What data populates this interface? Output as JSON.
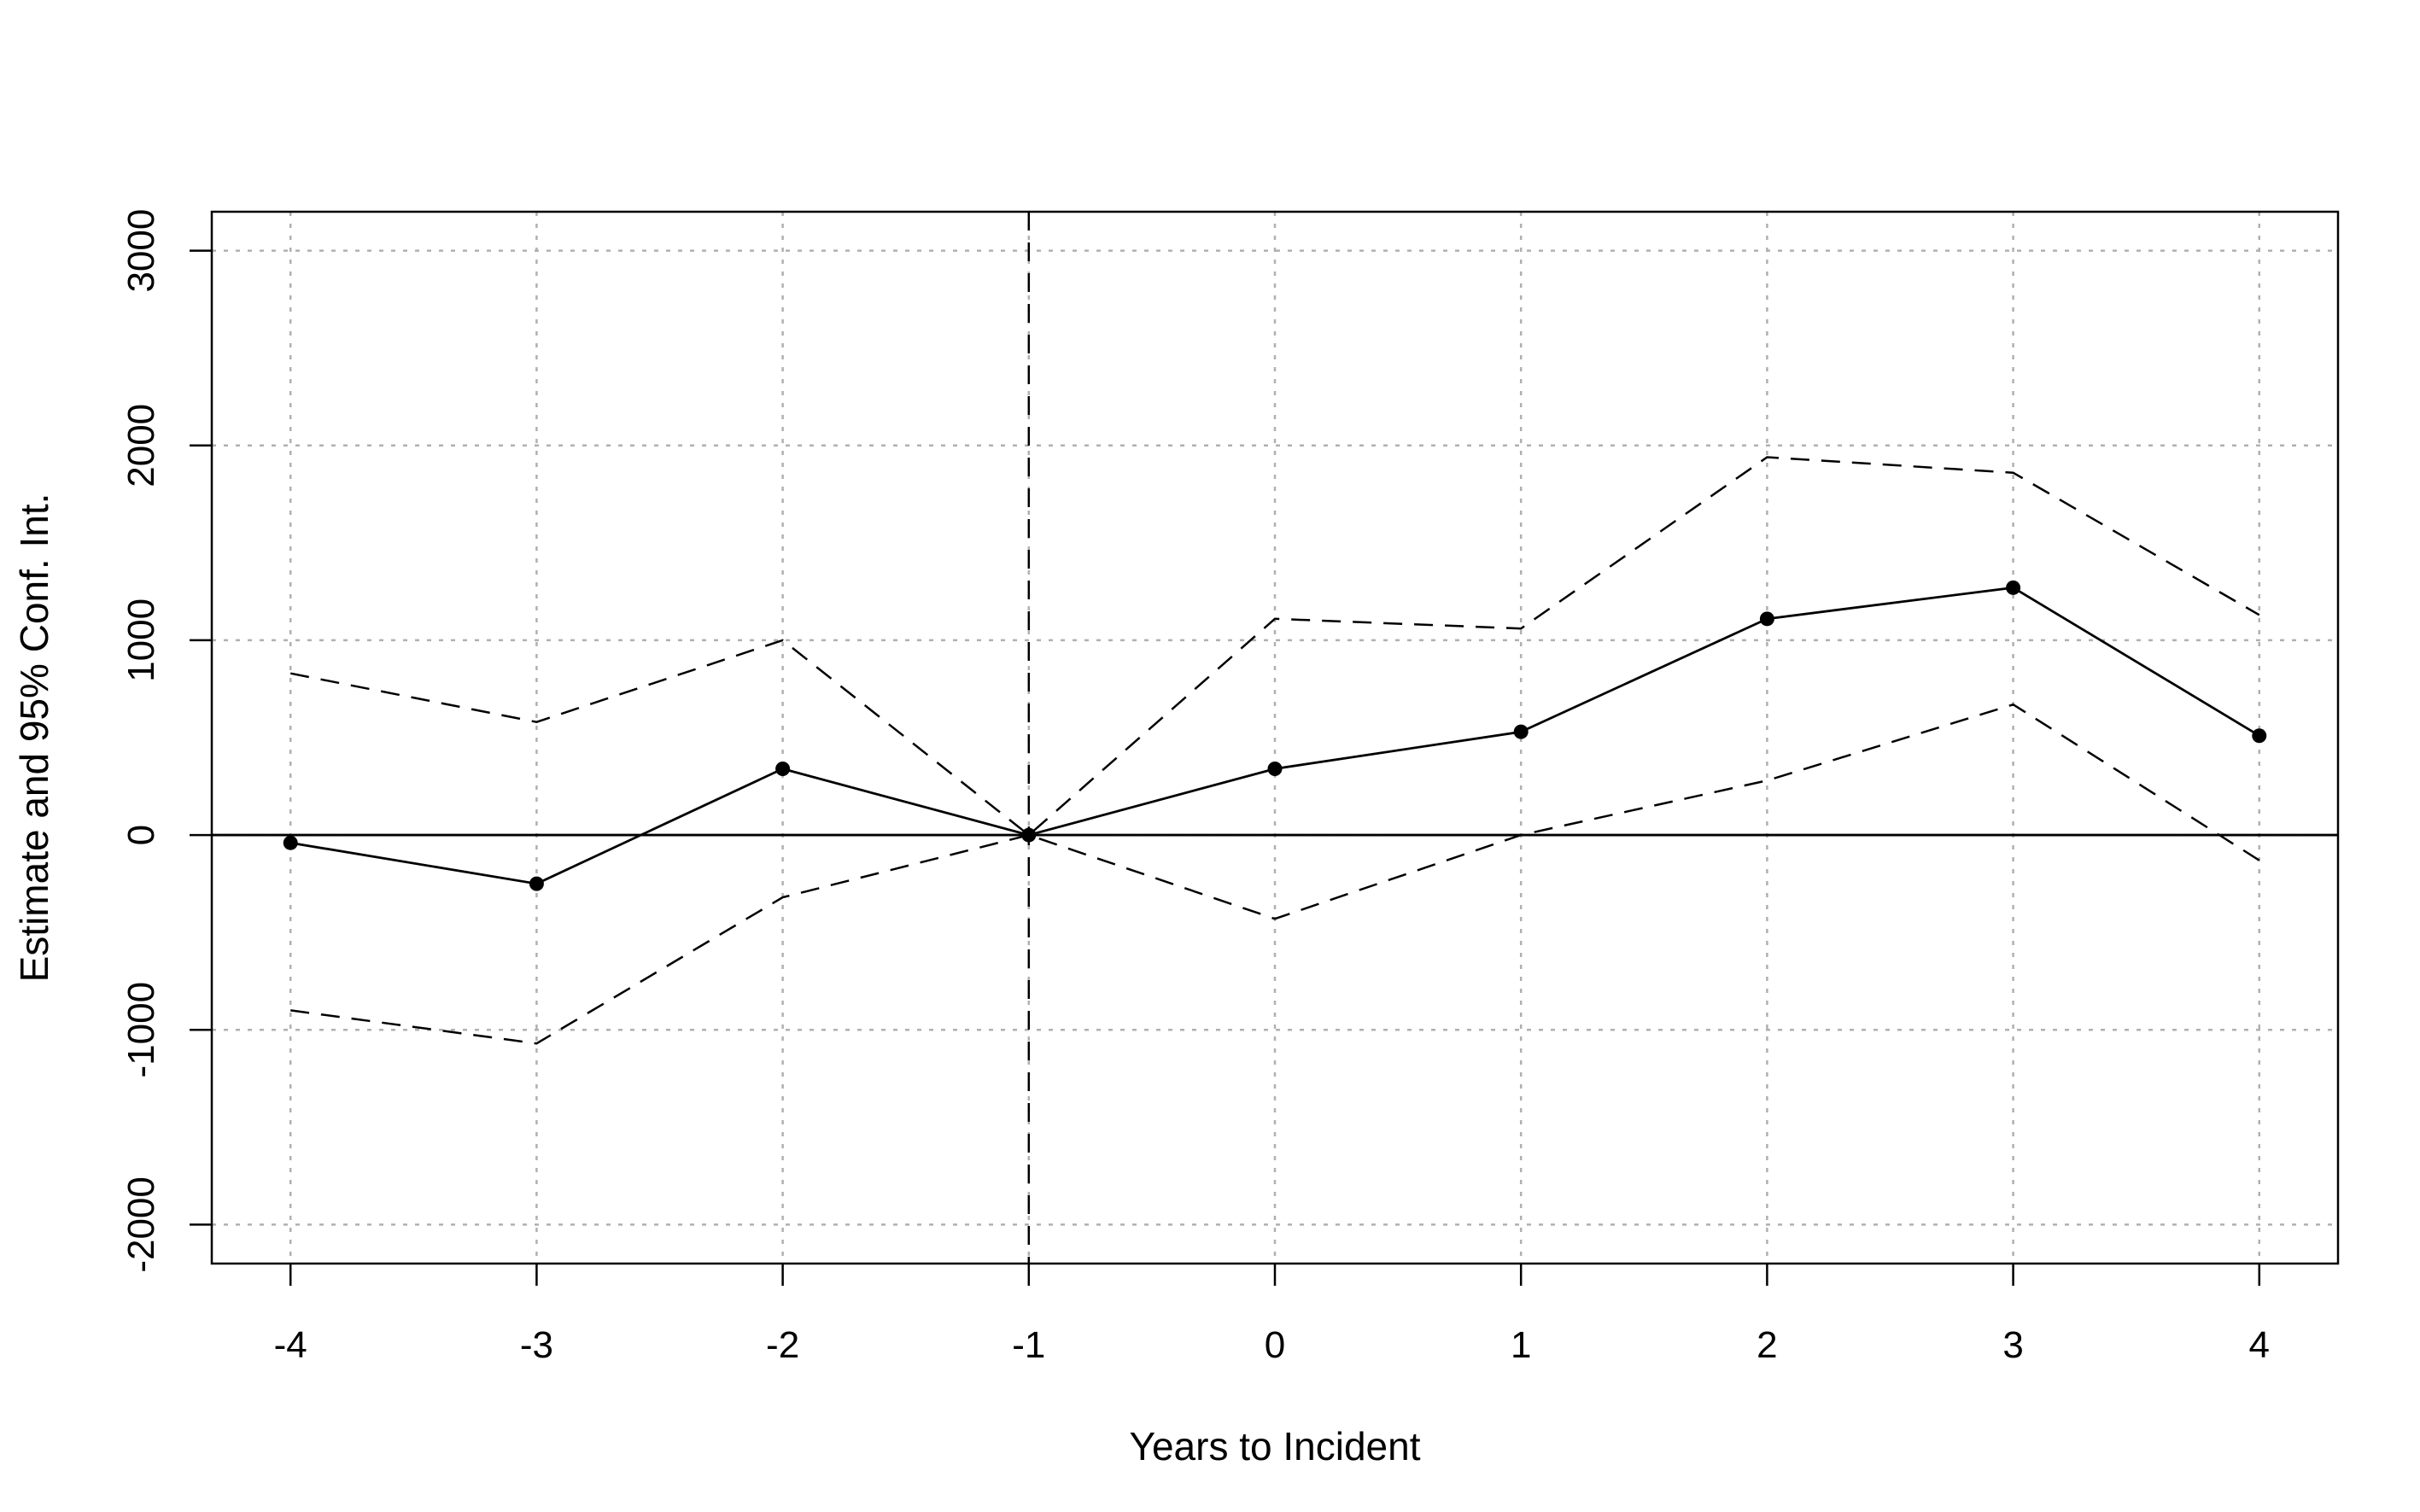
{
  "chart_data": {
    "type": "line",
    "xlabel": "Years to Incident",
    "ylabel": "Estimate and 95% Conf. Int.",
    "x": [
      -4,
      -3,
      -2,
      -1,
      0,
      1,
      2,
      3,
      4
    ],
    "xticks": [
      "-4",
      "-3",
      "-2",
      "-1",
      "0",
      "1",
      "2",
      "3",
      "4"
    ],
    "yticks": [
      "-2000",
      "-1000",
      "0",
      "1000",
      "2000",
      "3000"
    ],
    "ytick_values": [
      -2000,
      -1000,
      0,
      1000,
      2000,
      3000
    ],
    "xlim": [
      -4.32,
      4.32
    ],
    "ylim": [
      -2200,
      3200
    ],
    "grid": true,
    "reference_lines": {
      "horizontal": 0,
      "vertical": -1
    },
    "series": [
      {
        "role": "estimate",
        "style": "solid-with-points",
        "values": [
          -40,
          -250,
          340,
          0,
          340,
          530,
          1110,
          1270,
          510
        ]
      },
      {
        "role": "upper-ci",
        "style": "dashed",
        "values": [
          830,
          580,
          1000,
          0,
          1110,
          1060,
          1940,
          1860,
          1130
        ]
      },
      {
        "role": "lower-ci",
        "style": "dashed",
        "values": [
          -900,
          -1070,
          -320,
          0,
          -430,
          0,
          280,
          670,
          -130
        ]
      }
    ]
  }
}
